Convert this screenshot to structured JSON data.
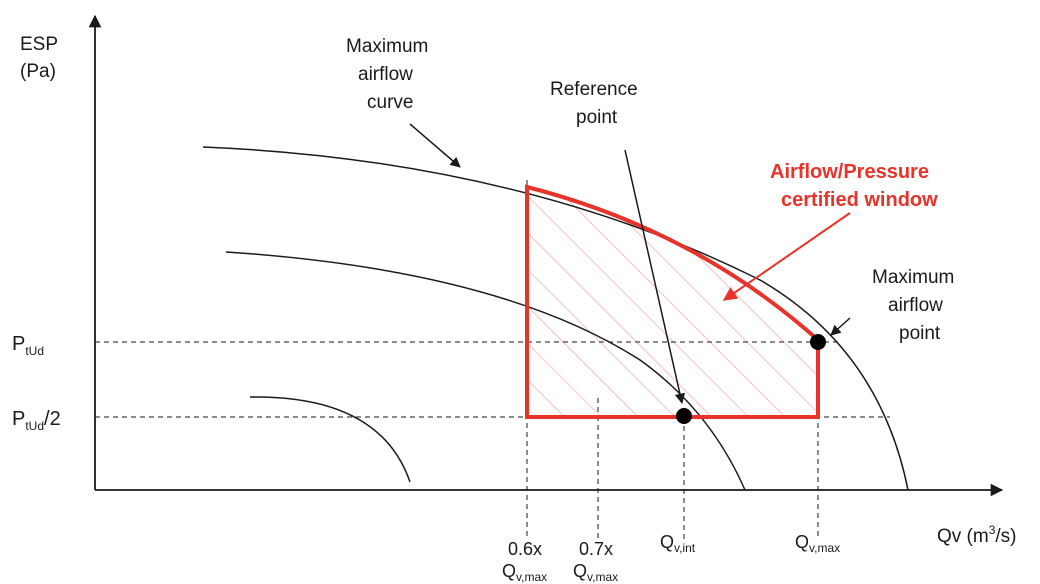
{
  "axes": {
    "y_label_line1": "ESP",
    "y_label_line2": "(Pa)",
    "x_label_main": "Qv (m",
    "x_label_sup": "3",
    "x_label_end": "/s)"
  },
  "y_ticks": {
    "p_tud_main": "P",
    "p_tud_sub": "tUd",
    "p_tud_half_main": "P",
    "p_tud_half_sub": "tUd",
    "p_tud_half_end": "/2"
  },
  "x_ticks": {
    "q06_coef": "0.6x",
    "q06_main": "Q",
    "q06_sub": "v,max",
    "q07_coef": "0.7x",
    "q07_main": "Q",
    "q07_sub": "v,max",
    "qint_main": "Q",
    "qint_sub": "v,int",
    "qmax_main": "Q",
    "qmax_sub": "v,max"
  },
  "annotations": {
    "max_curve_1": "Maximum",
    "max_curve_2": "airflow",
    "max_curve_3": "curve",
    "ref_1": "Reference",
    "ref_2": "point",
    "window_1": "Airflow/Pressure",
    "window_2": "certified window",
    "max_point_1": "Maximum",
    "max_point_2": "airflow",
    "max_point_3": "point"
  },
  "colors": {
    "window": "#e8332a",
    "hatch": "#f0a39a",
    "curves": "#1a1a1a"
  }
}
